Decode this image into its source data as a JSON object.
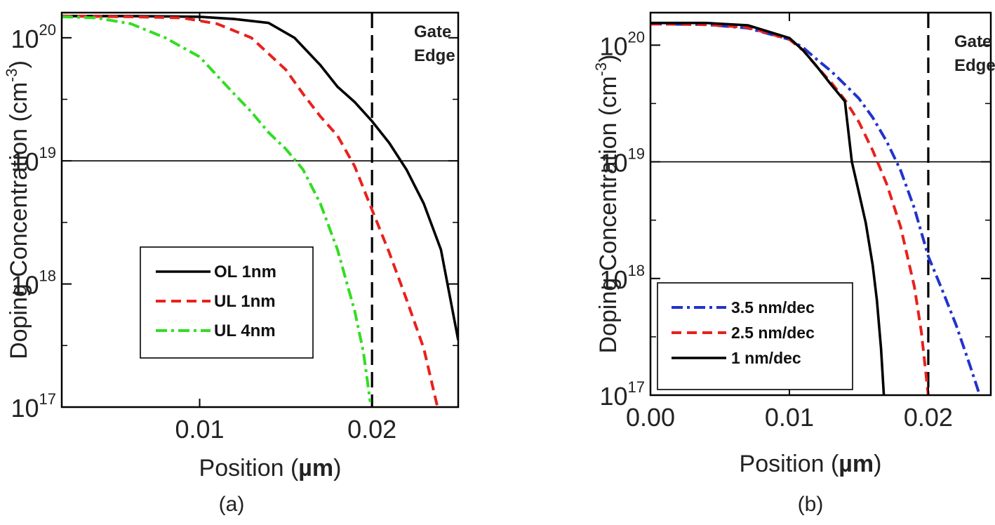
{
  "chart_data": [
    {
      "type": "line",
      "panel_label": "(a)",
      "xlabel_prefix": "Position (",
      "xlabel_unit": "µm",
      "xlabel_suffix": ")",
      "ylabel_text": "Doping Concentration (cm",
      "ylabel_sup": "-3",
      "ylabel_close": ")",
      "xlim": [
        0.002,
        0.025
      ],
      "ylim": [
        1e+17,
        1.6e+20
      ],
      "yscale": "log",
      "xticks": [
        {
          "v": 0.01,
          "label": "0.01"
        },
        {
          "v": 0.02,
          "label": "0.02"
        }
      ],
      "yticks": [
        {
          "v": 1e+17,
          "base": "10",
          "exp": "17"
        },
        {
          "v": 1e+18,
          "base": "10",
          "exp": "18"
        },
        {
          "v": 1e+19,
          "base": "10",
          "exp": "19"
        },
        {
          "v": 1e+20,
          "base": "10",
          "exp": "20"
        }
      ],
      "reference_line_y": 1e+19,
      "gate_edge_x": 0.02,
      "annotation": [
        "Gate",
        "Edge"
      ],
      "legend": {
        "position": "bottom-left"
      },
      "series": [
        {
          "name": "OL 1nm",
          "color": "#000000",
          "dash": "solid",
          "points": [
            [
              0.002,
              1.5e+20
            ],
            [
              0.006,
              1.5e+20
            ],
            [
              0.01,
              1.48e+20
            ],
            [
              0.012,
              1.42e+20
            ],
            [
              0.014,
              1.32e+20
            ],
            [
              0.0155,
              1e+20
            ],
            [
              0.017,
              6e+19
            ],
            [
              0.018,
              4e+19
            ],
            [
              0.019,
              3e+19
            ],
            [
              0.02,
              2.1e+19
            ],
            [
              0.021,
              1.4e+19
            ],
            [
              0.022,
              8.5e+18
            ],
            [
              0.023,
              4.5e+18
            ],
            [
              0.024,
              1.9e+18
            ],
            [
              0.025,
              3.5e+17
            ]
          ]
        },
        {
          "name": "UL 1nm",
          "color": "#e8211d",
          "dash": "dash",
          "points": [
            [
              0.002,
              1.5e+20
            ],
            [
              0.006,
              1.48e+20
            ],
            [
              0.009,
              1.45e+20
            ],
            [
              0.011,
              1.3e+20
            ],
            [
              0.013,
              1e+20
            ],
            [
              0.015,
              5.5e+19
            ],
            [
              0.016,
              3.5e+19
            ],
            [
              0.017,
              2.3e+19
            ],
            [
              0.018,
              1.6e+19
            ],
            [
              0.019,
              9e+18
            ],
            [
              0.02,
              4e+18
            ],
            [
              0.021,
              1.8e+18
            ],
            [
              0.022,
              7.5e+17
            ],
            [
              0.023,
              3e+17
            ],
            [
              0.0238,
              1e+17
            ]
          ]
        },
        {
          "name": "UL 4nm",
          "color": "#33dd22",
          "dash": "dashdot",
          "points": [
            [
              0.002,
              1.48e+20
            ],
            [
              0.004,
              1.45e+20
            ],
            [
              0.006,
              1.3e+20
            ],
            [
              0.008,
              1e+20
            ],
            [
              0.01,
              7e+19
            ],
            [
              0.012,
              3.5e+19
            ],
            [
              0.013,
              2.5e+19
            ],
            [
              0.014,
              1.7e+19
            ],
            [
              0.015,
              1.25e+19
            ],
            [
              0.016,
              8.5e+18
            ],
            [
              0.017,
              4.5e+18
            ],
            [
              0.018,
              1.9e+18
            ],
            [
              0.019,
              6e+17
            ],
            [
              0.0195,
              2.8e+17
            ],
            [
              0.0199,
              1.1e+17
            ]
          ]
        }
      ]
    },
    {
      "type": "line",
      "panel_label": "(b)",
      "xlabel_prefix": "Position (",
      "xlabel_unit": "µm",
      "xlabel_suffix": ")",
      "ylabel_text": "Doping Concentration (cm",
      "ylabel_sup": "-3",
      "ylabel_close": ")",
      "xlim": [
        0.0,
        0.0245
      ],
      "ylim": [
        1e+17,
        1.9e+20
      ],
      "yscale": "log",
      "xticks": [
        {
          "v": 0.0,
          "label": "0.00"
        },
        {
          "v": 0.01,
          "label": "0.01"
        },
        {
          "v": 0.02,
          "label": "0.02"
        }
      ],
      "yticks": [
        {
          "v": 1e+17,
          "base": "10",
          "exp": "17"
        },
        {
          "v": 1e+18,
          "base": "10",
          "exp": "18"
        },
        {
          "v": 1e+19,
          "base": "10",
          "exp": "19"
        },
        {
          "v": 1e+20,
          "base": "10",
          "exp": "20"
        }
      ],
      "reference_line_y": 1e+19,
      "gate_edge_x": 0.02,
      "annotation": [
        "Gate",
        "Edge"
      ],
      "legend": {
        "position": "bottom-left"
      },
      "series": [
        {
          "name": "3.5 nm/dec",
          "color": "#2233cc",
          "dash": "dashdot",
          "points": [
            [
              0.0,
              1.52e+20
            ],
            [
              0.004,
              1.5e+20
            ],
            [
              0.007,
              1.4e+20
            ],
            [
              0.01,
              1.12e+20
            ],
            [
              0.011,
              9.5e+19
            ],
            [
              0.012,
              7.5e+19
            ],
            [
              0.013,
              6e+19
            ],
            [
              0.014,
              4.6e+19
            ],
            [
              0.015,
              3.5e+19
            ],
            [
              0.016,
              2.4e+19
            ],
            [
              0.017,
              1.5e+19
            ],
            [
              0.018,
              8.5e+18
            ],
            [
              0.019,
              4e+18
            ],
            [
              0.02,
              1.55e+18
            ],
            [
              0.021,
              8e+17
            ],
            [
              0.022,
              4e+17
            ],
            [
              0.023,
              1.8e+17
            ],
            [
              0.0237,
              1e+17
            ]
          ]
        },
        {
          "name": "2.5 nm/dec",
          "color": "#e8211d",
          "dash": "dash",
          "points": [
            [
              0.0,
              1.52e+20
            ],
            [
              0.004,
              1.5e+20
            ],
            [
              0.007,
              1.42e+20
            ],
            [
              0.01,
              1.12e+20
            ],
            [
              0.011,
              9e+19
            ],
            [
              0.012,
              6.5e+19
            ],
            [
              0.013,
              4.8e+19
            ],
            [
              0.014,
              3.4e+19
            ],
            [
              0.015,
              2.2e+19
            ],
            [
              0.016,
              1.25e+19
            ],
            [
              0.017,
              6.5e+18
            ],
            [
              0.018,
              2.8e+18
            ],
            [
              0.019,
              8.5e+17
            ],
            [
              0.0195,
              3.5e+17
            ],
            [
              0.02,
              1e+17
            ]
          ]
        },
        {
          "name": "1 nm/dec",
          "color": "#000000",
          "dash": "solid",
          "points": [
            [
              0.0,
              1.55e+20
            ],
            [
              0.004,
              1.55e+20
            ],
            [
              0.007,
              1.48e+20
            ],
            [
              0.01,
              1.15e+20
            ],
            [
              0.011,
              9e+19
            ],
            [
              0.012,
              6.5e+19
            ],
            [
              0.013,
              4.6e+19
            ],
            [
              0.014,
              3.3e+19
            ],
            [
              0.0145,
              1e+19
            ],
            [
              0.015,
              5.5e+18
            ],
            [
              0.0155,
              3e+18
            ],
            [
              0.016,
              1.3e+18
            ],
            [
              0.0163,
              6.5e+17
            ],
            [
              0.0166,
              2.5e+17
            ],
            [
              0.0168,
              1e+17
            ]
          ]
        }
      ]
    }
  ]
}
